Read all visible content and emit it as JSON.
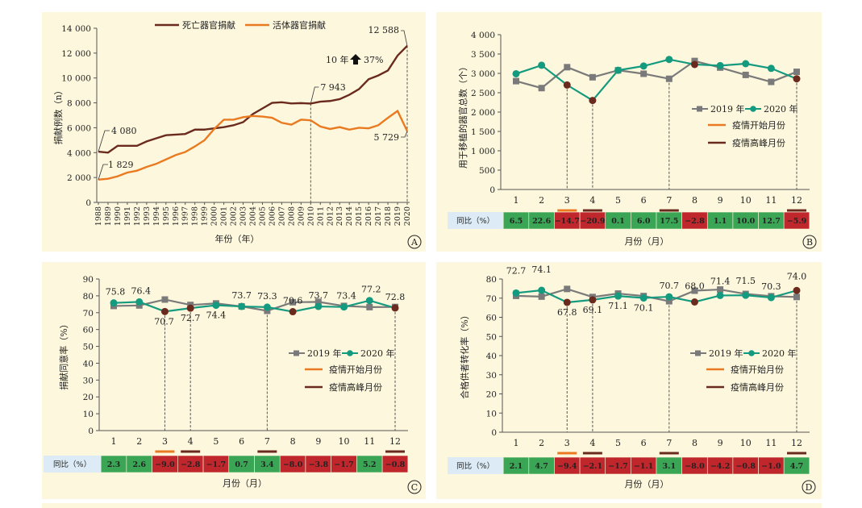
{
  "chart_data": [
    {
      "id": "A",
      "type": "line",
      "ylabel": "捐献例数（n）",
      "xlabel": "年份（年）",
      "ylim": [
        0,
        14000
      ],
      "yticks": [
        "0",
        "2 000",
        "4 000",
        "6 000",
        "8 000",
        "10 000",
        "12 000",
        "14 000"
      ],
      "categories": [
        "1988",
        "1989",
        "1990",
        "1991",
        "1992",
        "1993",
        "1994",
        "1995",
        "1996",
        "1997",
        "1998",
        "1999",
        "2000",
        "2001",
        "2002",
        "2003",
        "2004",
        "2005",
        "2006",
        "2007",
        "2008",
        "2009",
        "2010",
        "2011",
        "2012",
        "2013",
        "2014",
        "2015",
        "2016",
        "2017",
        "2018",
        "2019",
        "2020"
      ],
      "series": [
        {
          "name": "死亡器官捐献",
          "color": "#6b2a1e",
          "values": [
            4080,
            4000,
            4550,
            4550,
            4550,
            4900,
            5150,
            5400,
            5450,
            5500,
            5850,
            5850,
            5950,
            6050,
            6200,
            6450,
            7100,
            7550,
            8000,
            8050,
            7950,
            7980,
            7943,
            8100,
            8150,
            8300,
            8650,
            9100,
            9900,
            10200,
            10600,
            11800,
            12588
          ]
        },
        {
          "name": "活体器官捐献",
          "color": "#ea7a21",
          "values": [
            1829,
            1900,
            2100,
            2400,
            2550,
            2850,
            3100,
            3450,
            3800,
            4050,
            4500,
            5000,
            5900,
            6650,
            6650,
            6850,
            6950,
            6900,
            6800,
            6400,
            6250,
            6650,
            6600,
            6100,
            5900,
            6050,
            5850,
            6000,
            5950,
            6200,
            6800,
            7350,
            5729
          ]
        }
      ],
      "annotations": {
        "dead_start": "4 080",
        "live_start": "1 829",
        "year2010": "7 943",
        "dead_end": "12 588",
        "live_end": "5 729",
        "growth": "10 年",
        "growth_pct": "37%",
        "panel_label": "A"
      }
    },
    {
      "id": "B",
      "type": "line",
      "ylabel": "用于移植的器官总数（个）",
      "xlabel": "月份（月）",
      "ylim": [
        0,
        4000
      ],
      "yticks": [
        "0",
        "500",
        "1 000",
        "1 500",
        "2 000",
        "2 500",
        "3 000",
        "3 500",
        "4 000"
      ],
      "categories": [
        "1",
        "2",
        "3",
        "4",
        "5",
        "6",
        "7",
        "8",
        "9",
        "10",
        "11",
        "12"
      ],
      "series": [
        {
          "name": "2019 年",
          "color": "#7a7a7a",
          "marker": "square",
          "values": [
            2800,
            2620,
            3160,
            2900,
            3080,
            2990,
            2860,
            3320,
            3150,
            2960,
            2780,
            3040
          ]
        },
        {
          "name": "2020 年",
          "color": "#149a7e",
          "marker": "circle",
          "values": [
            2990,
            3210,
            2700,
            2300,
            3080,
            3190,
            3360,
            3230,
            3200,
            3250,
            3130,
            2860
          ]
        }
      ],
      "legend_extra": [
        {
          "name": "疫情开始月份",
          "color": "#ea7a21"
        },
        {
          "name": "疫情高峰月份",
          "color": "#6b2a1e"
        }
      ],
      "table_label": "同比（%）",
      "yoy": [
        "6.5",
        "22.6",
        "−14.7",
        "−20.9",
        "0.1",
        "6.0",
        "17.5",
        "−2.8",
        "1.1",
        "10.0",
        "12.7",
        "−5.9"
      ],
      "yoy_positive": [
        true,
        true,
        false,
        false,
        true,
        true,
        true,
        false,
        true,
        true,
        true,
        false
      ],
      "panel_label": "B"
    },
    {
      "id": "C",
      "type": "line",
      "ylabel": "捐献同意率（%）",
      "xlabel": "月份（月）",
      "ylim": [
        0,
        90
      ],
      "yticks": [
        "0",
        "10",
        "20",
        "30",
        "40",
        "50",
        "60",
        "70",
        "80",
        "90"
      ],
      "categories": [
        "1",
        "2",
        "3",
        "4",
        "5",
        "6",
        "7",
        "8",
        "9",
        "10",
        "11",
        "12"
      ],
      "series": [
        {
          "name": "2019 年",
          "color": "#7a7a7a",
          "marker": "square",
          "values": [
            74.0,
            74.3,
            77.8,
            74.6,
            75.5,
            73.7,
            71.1,
            76.2,
            76.4,
            74.0,
            73.3,
            73.4
          ]
        },
        {
          "name": "2020 年",
          "color": "#149a7e",
          "marker": "circle",
          "values": [
            75.8,
            76.4,
            70.7,
            72.7,
            74.4,
            73.7,
            73.3,
            70.6,
            73.7,
            73.4,
            77.2,
            72.8
          ]
        }
      ],
      "data_labels": [
        "75.8",
        "76.4",
        "70.7",
        "72.7",
        "74.4",
        "73.7",
        "73.3",
        "70.6",
        "73.7",
        "73.4",
        "77.2",
        "72.8"
      ],
      "legend_extra": [
        {
          "name": "疫情开始月份",
          "color": "#ea7a21"
        },
        {
          "name": "疫情高峰月份",
          "color": "#6b2a1e"
        }
      ],
      "table_label": "同比（%）",
      "yoy": [
        "2.3",
        "2.6",
        "−9.0",
        "−2.8",
        "−1.7",
        "0.7",
        "3.4",
        "−8.0",
        "−3.8",
        "−1.7",
        "5.2",
        "−0.8"
      ],
      "yoy_positive": [
        true,
        true,
        false,
        false,
        false,
        true,
        true,
        false,
        false,
        false,
        true,
        false
      ],
      "panel_label": "C"
    },
    {
      "id": "D",
      "type": "line",
      "ylabel": "合格供者转化率（%）",
      "xlabel": "月份（月）",
      "ylim": [
        0,
        80
      ],
      "yticks": [
        "0",
        "10",
        "20",
        "30",
        "40",
        "50",
        "60",
        "70",
        "80"
      ],
      "categories": [
        "1",
        "2",
        "3",
        "4",
        "5",
        "6",
        "7",
        "8",
        "9",
        "10",
        "11",
        "12"
      ],
      "series": [
        {
          "name": "2019 年",
          "color": "#7a7a7a",
          "marker": "square",
          "values": [
            71.2,
            70.8,
            74.8,
            70.6,
            72.4,
            71.1,
            68.4,
            73.9,
            74.5,
            72.2,
            71.0,
            70.6
          ]
        },
        {
          "name": "2020 年",
          "color": "#149a7e",
          "marker": "circle",
          "values": [
            72.7,
            74.1,
            67.8,
            69.1,
            71.1,
            70.1,
            70.7,
            68.0,
            71.4,
            71.5,
            70.3,
            74.0
          ]
        }
      ],
      "data_labels": [
        "72.7",
        "74.1",
        "67.8",
        "69.1",
        "71.1",
        "70.1",
        "70.7",
        "68.0",
        "71.4",
        "71.5",
        "70.3",
        "74.0"
      ],
      "legend_extra": [
        {
          "name": "疫情开始月份",
          "color": "#ea7a21"
        },
        {
          "name": "疫情高峰月份",
          "color": "#6b2a1e"
        }
      ],
      "table_label": "同比（%）",
      "yoy": [
        "2.1",
        "4.7",
        "−9.4",
        "−2.1",
        "−1.7",
        "−1.1",
        "3.1",
        "−8.0",
        "−4.2",
        "−0.8",
        "−1.0",
        "4.7"
      ],
      "yoy_positive": [
        true,
        true,
        false,
        false,
        false,
        false,
        true,
        false,
        false,
        false,
        false,
        true
      ],
      "panel_label": "D"
    }
  ],
  "colors": {
    "panel_bg": "#fdf8dd",
    "positive": "#3aa655",
    "negative": "#c0272d",
    "table_head": "#dcebf5",
    "start_month": "#ea7a21",
    "peak_month": "#6b2a1e"
  }
}
